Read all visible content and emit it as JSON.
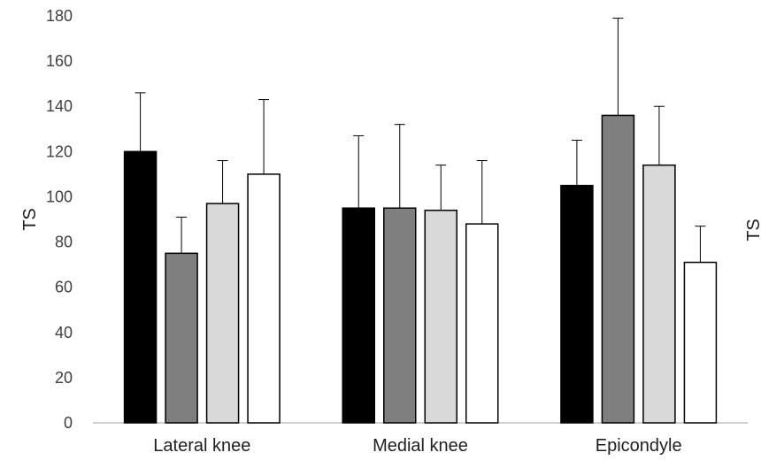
{
  "chart_data": {
    "type": "bar",
    "title": "",
    "xlabel": "",
    "ylabel": "TS",
    "ylim": [
      0,
      180
    ],
    "yticks": [
      0,
      20,
      40,
      60,
      80,
      100,
      120,
      140,
      160,
      180
    ],
    "grid": false,
    "categories": [
      "Lateral knee",
      "Medial knee",
      "Epicondyle"
    ],
    "series": [
      {
        "color": "#000000",
        "values": [
          120,
          95,
          105
        ],
        "errors": [
          26,
          32,
          20
        ]
      },
      {
        "color": "#7f7f7f",
        "values": [
          75,
          95,
          136
        ],
        "errors": [
          16,
          37,
          43
        ]
      },
      {
        "color": "#d9d9d9",
        "values": [
          97,
          94,
          114
        ],
        "errors": [
          19,
          20,
          26
        ]
      },
      {
        "color": "#ffffff",
        "values": [
          110,
          88,
          71
        ],
        "errors": [
          33,
          28,
          16
        ]
      }
    ],
    "second_axis_label": "TS"
  }
}
